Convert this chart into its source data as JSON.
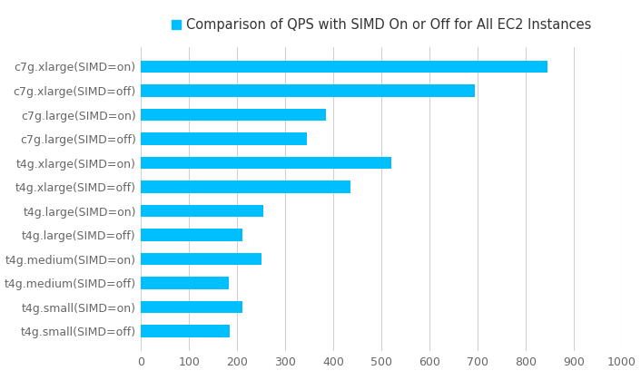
{
  "title": "Comparison of QPS with SIMD On or Off for All EC2 Instances",
  "bar_color": "#00BFFF",
  "legend_color": "#00BFFF",
  "categories": [
    "c7g.xlarge(SIMD=on)",
    "c7g.xlarge(SIMD=off)",
    "c7g.large(SIMD=on)",
    "c7g.large(SIMD=off)",
    "t4g.xlarge(SIMD=on)",
    "t4g.xlarge(SIMD=off)",
    "t4g.large(SIMD=on)",
    "t4g.large(SIMD=off)",
    "t4g.medium(SIMD=on)",
    "t4g.medium(SIMD=off)",
    "t4g.small(SIMD=on)",
    "t4g.small(SIMD=off)"
  ],
  "values": [
    845,
    695,
    385,
    345,
    520,
    435,
    255,
    210,
    250,
    183,
    210,
    185
  ],
  "xlim": [
    0,
    1000
  ],
  "xticks": [
    0,
    100,
    200,
    300,
    400,
    500,
    600,
    700,
    800,
    900,
    1000
  ],
  "grid_color": "#d0d0d0",
  "background_color": "#ffffff",
  "label_fontsize": 9,
  "title_fontsize": 10.5,
  "tick_color": "#666666"
}
